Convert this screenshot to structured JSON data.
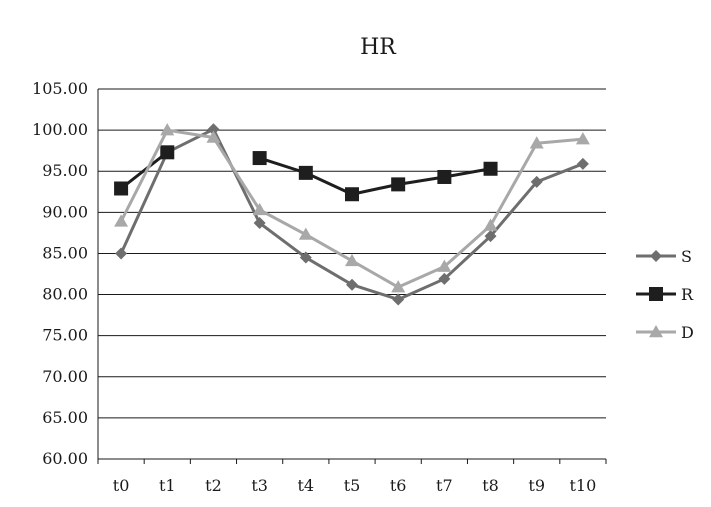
{
  "chart_data": {
    "type": "line",
    "title": "HR",
    "xlabel": "",
    "ylabel": "",
    "categories": [
      "t0",
      "t1",
      "t2",
      "t3",
      "t4",
      "t5",
      "t6",
      "t7",
      "t8",
      "t9",
      "t10"
    ],
    "ylim": [
      60,
      105
    ],
    "yticks": [
      "60.00",
      "65.00",
      "70.00",
      "75.00",
      "80.00",
      "85.00",
      "90.00",
      "95.00",
      "100.00",
      "105.00"
    ],
    "grid": true,
    "legend_position": "right",
    "series": [
      {
        "name": "S",
        "marker": "diamond",
        "color": "#6e6e6e",
        "values": [
          85.0,
          97.3,
          100.1,
          88.7,
          84.5,
          81.2,
          79.4,
          81.9,
          87.1,
          93.7,
          95.9
        ]
      },
      {
        "name": "R",
        "marker": "square",
        "color": "#1e1e1e",
        "values": [
          92.9,
          97.3,
          null,
          96.6,
          94.8,
          92.2,
          93.4,
          94.3,
          95.3,
          null,
          null
        ]
      },
      {
        "name": "D",
        "marker": "triangle",
        "color": "#a8a8a8",
        "values": [
          88.9,
          100.0,
          99.1,
          90.3,
          87.3,
          84.1,
          80.9,
          83.4,
          88.4,
          98.4,
          98.9
        ]
      }
    ]
  }
}
